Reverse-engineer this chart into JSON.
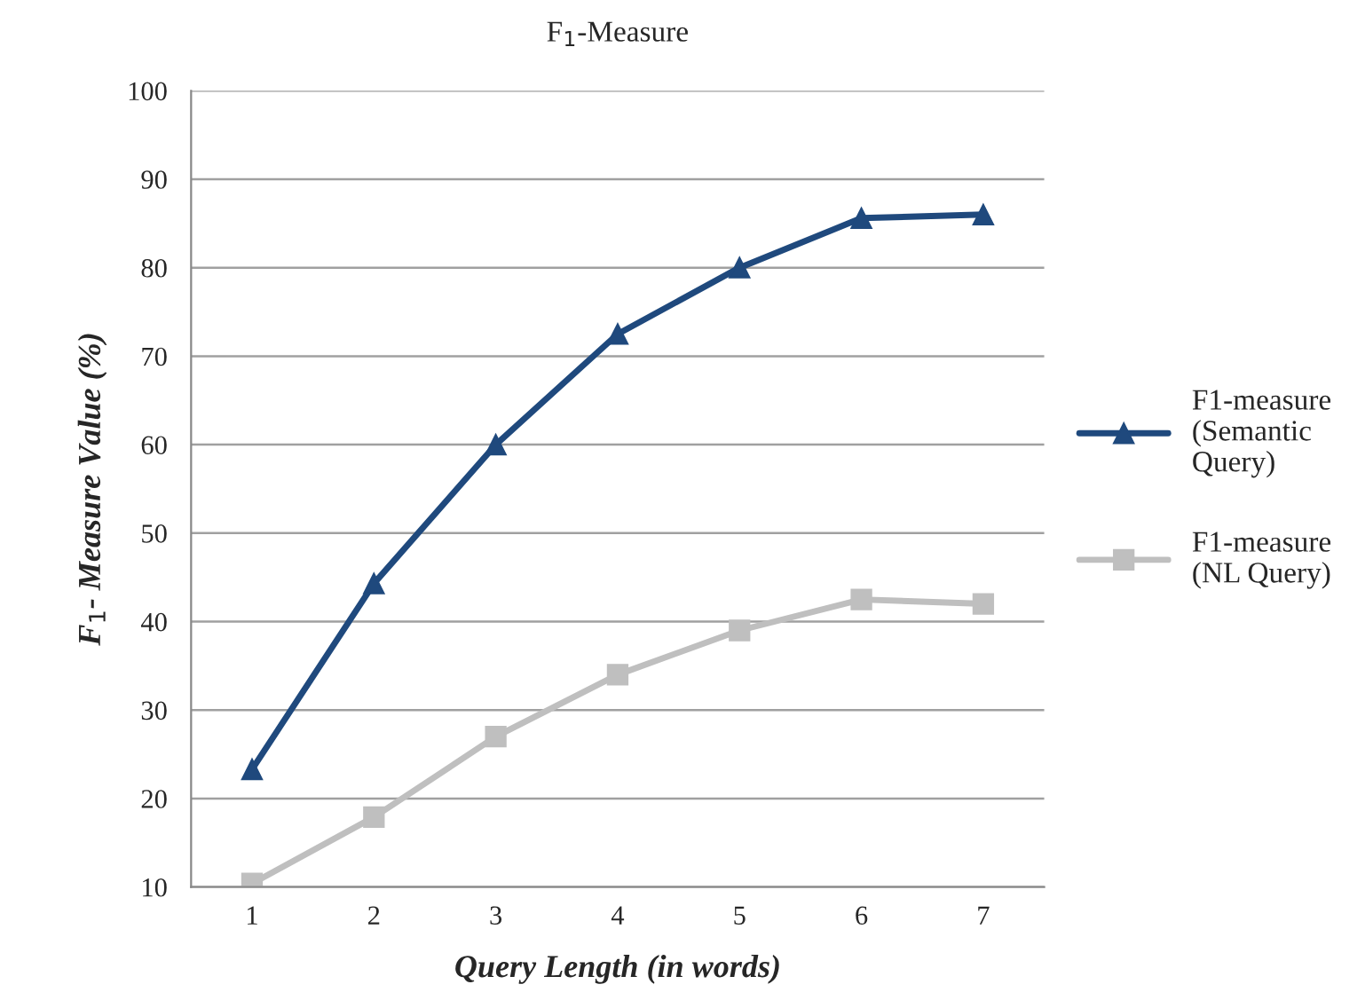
{
  "chart_data": {
    "type": "line",
    "title": "F$_{1}$-Measure",
    "xlabel": "Query Length (in words)",
    "ylabel": "F$_{1}$- Measure Value (%)",
    "categories": [
      "1",
      "2",
      "3",
      "4",
      "5",
      "6",
      "7"
    ],
    "series": [
      {
        "name": "F1-measure\n(Semantic\nQuery)",
        "color": "#1f497d",
        "marker": "triangle",
        "values": [
          23.3,
          44.3,
          60,
          72.5,
          80,
          85.6,
          86
        ]
      },
      {
        "name": "F1-measure\n(NL Query)",
        "color": "#bfbfbf",
        "marker": "square",
        "values": [
          10.4,
          17.9,
          27,
          34,
          39,
          42.5,
          42
        ]
      }
    ],
    "ylim": [
      10,
      100
    ],
    "yticks": [
      10,
      20,
      30,
      40,
      50,
      60,
      70,
      80,
      90,
      100
    ],
    "grid": "y",
    "legend": "right",
    "line_style": "solid"
  }
}
